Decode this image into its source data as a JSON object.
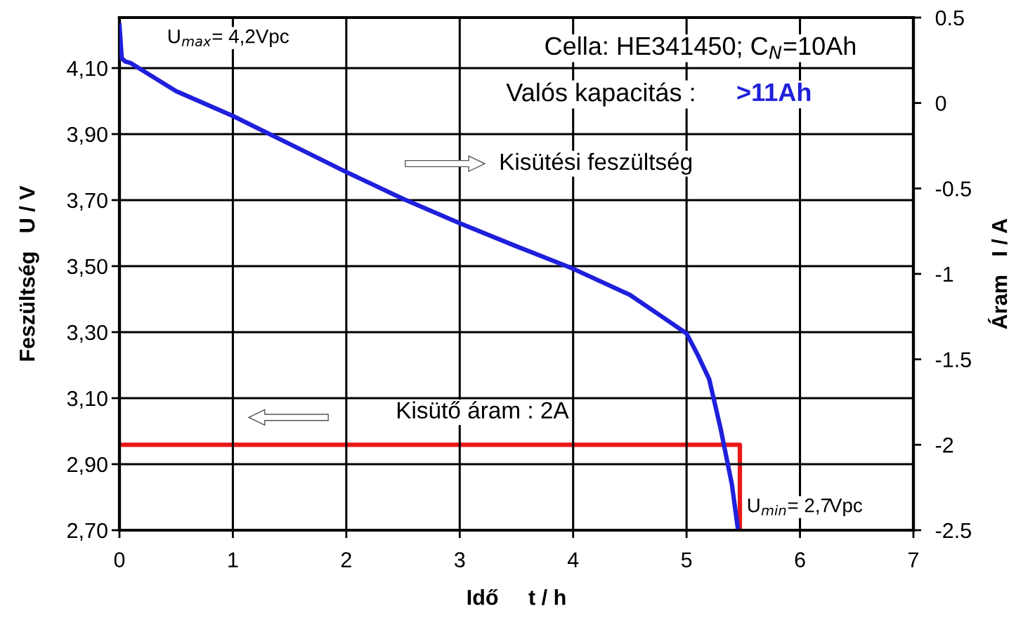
{
  "chart_data": {
    "type": "line",
    "xlabel": "Idő     t / h",
    "ylabel": "Feszültség   U / V",
    "y2label": "Áram   I / A",
    "xlim": [
      0,
      7
    ],
    "xticks": [
      0,
      1,
      2,
      3,
      4,
      5,
      6,
      7
    ],
    "ylim": [
      2.7,
      4.253
    ],
    "yticks": [
      {
        "value": 2.7,
        "label": "2,70"
      },
      {
        "value": 2.9,
        "label": "2,90"
      },
      {
        "value": 3.1,
        "label": "3,10"
      },
      {
        "value": 3.3,
        "label": "3,30"
      },
      {
        "value": 3.5,
        "label": "3,50"
      },
      {
        "value": 3.7,
        "label": "3,70"
      },
      {
        "value": 3.9,
        "label": "3,90"
      },
      {
        "value": 4.1,
        "label": "4,10"
      }
    ],
    "y2lim": [
      -2.5,
      0.5
    ],
    "y2ticks": [
      -2.5,
      -2,
      -1.5,
      -1,
      -0.5,
      0,
      0.5
    ],
    "grid": true,
    "legend": false,
    "line_style": "solid",
    "marker": "none",
    "series": [
      {
        "color": "#1f1fdc",
        "x": [
          0,
          0.02,
          0.05,
          0.1,
          0.5,
          1,
          1.5,
          2,
          2.5,
          3,
          3.5,
          4,
          4.5,
          4.8,
          5,
          5.1,
          5.2,
          5.3,
          5.4,
          5.45
        ],
        "values": [
          4.23,
          4.13,
          4.12,
          4.115,
          4.03,
          3.955,
          3.87,
          3.785,
          3.704,
          3.63,
          3.56,
          3.492,
          3.413,
          3.343,
          3.296,
          3.23,
          3.157,
          3.008,
          2.838,
          2.71
        ]
      },
      {
        "color": "#e81818",
        "axis": "y2",
        "x": [
          0,
          5.47,
          5.47
        ],
        "values": [
          -2,
          -2,
          -2.5
        ]
      }
    ],
    "annotations": [
      "U$_{max}$= 4,2Vpc",
      "Cella: HE341450; C$_{N}$=10Ah",
      "Valós kapacitás : ",
      ">11Ah",
      "Kisütési feszültség",
      "Kisütő áram : 2A",
      "U$_{min}$= 2,7Vpc"
    ]
  }
}
